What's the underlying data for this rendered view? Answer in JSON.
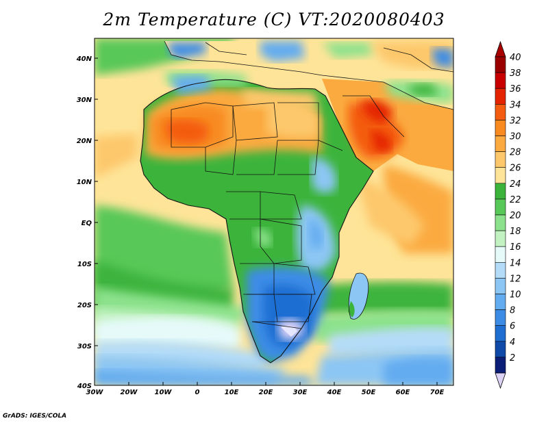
{
  "title": "2m Temperature (C) VT:2020080403",
  "credit": "GrADS: IGES/COLA",
  "axes": {
    "lon_ticks": [
      "30W",
      "20W",
      "10W",
      "0",
      "10E",
      "20E",
      "30E",
      "40E",
      "50E",
      "60E",
      "70E"
    ],
    "lat_ticks": [
      "40N",
      "30N",
      "20N",
      "10N",
      "EQ",
      "10S",
      "20S",
      "30S",
      "40S"
    ]
  },
  "colorbar": {
    "labels": [
      "40",
      "38",
      "36",
      "34",
      "32",
      "30",
      "28",
      "26",
      "24",
      "22",
      "20",
      "18",
      "16",
      "14",
      "12",
      "10",
      "8",
      "6",
      "4",
      "2"
    ],
    "colors": [
      "#9b0000",
      "#c80000",
      "#e42400",
      "#f45c10",
      "#f88a20",
      "#fbaa40",
      "#fdc86c",
      "#fee498",
      "#3cb43c",
      "#58c858",
      "#8ce28c",
      "#c2f2c2",
      "#e6fafa",
      "#b4dcf8",
      "#8cc6f4",
      "#64acf0",
      "#3c8ce6",
      "#1e6ed2",
      "#104aa8",
      "#0a1e78"
    ],
    "top_arrow_color": "#a80000",
    "bottom_arrow_color": "#dcd2f5"
  }
}
